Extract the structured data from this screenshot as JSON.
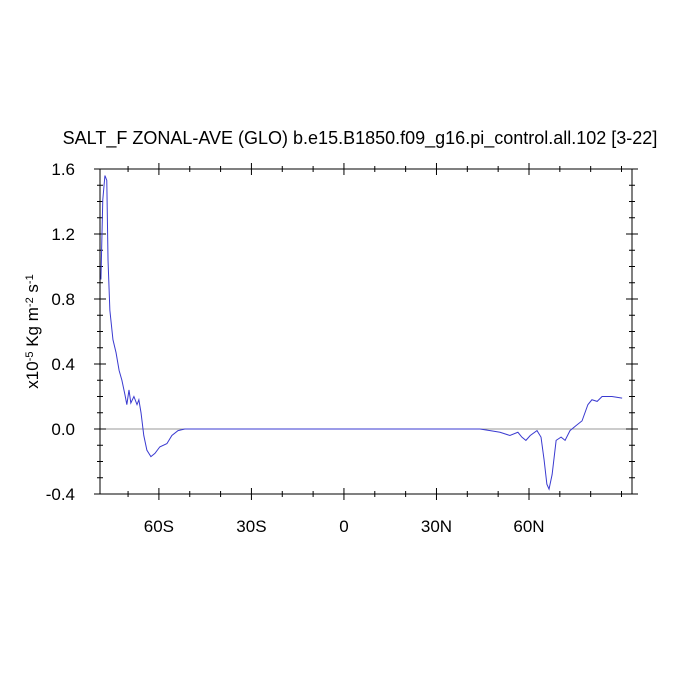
{
  "chart_data": {
    "type": "line",
    "title": "SALT_F ZONAL-AVE (GLO) b.e15.B1850.f09_g16.pi_control.all.102 [3-22]",
    "ylabel": [
      "x10",
      "-5",
      " Kg m",
      "-2",
      " s",
      "-1"
    ],
    "xlim": [
      -79.1,
      93.4
    ],
    "ylim": [
      -0.4,
      1.6
    ],
    "xticks": [
      {
        "value": -60,
        "label": "60S"
      },
      {
        "value": -30,
        "label": "30S"
      },
      0,
      {
        "value": 30,
        "label": "30N"
      },
      {
        "value": 60,
        "label": "60N"
      }
    ],
    "yticks": [
      1.6,
      1.2,
      0.8,
      0.4,
      {
        "value": 0,
        "label": "0.0"
      },
      -0.4
    ],
    "xminor": [
      -70,
      -50,
      -40,
      -20,
      -10,
      10,
      20,
      40,
      50,
      70,
      80,
      90
    ],
    "yminor": [
      -0.3,
      -0.2,
      -0.1,
      0.1,
      0.2,
      0.3,
      0.5,
      0.6,
      0.7,
      0.9,
      1.0,
      1.1,
      1.3,
      1.4,
      1.5
    ],
    "reference_line": 0,
    "reference_color": "#999999",
    "series": [
      {
        "color": "#3a3ad0",
        "x": [
          -78.8,
          -78.2,
          -77.5,
          -76.9,
          -76.5,
          -75.9,
          -74.9,
          -73.9,
          -72.9,
          -72.0,
          -71.0,
          -70.4,
          -69.7,
          -69.1,
          -68.1,
          -67.1,
          -66.5,
          -65.8,
          -64.9,
          -63.9,
          -62.6,
          -61.3,
          -59.7,
          -57.4,
          -55.8,
          -53.8,
          -51.6,
          44.1,
          47.4,
          50.6,
          53.8,
          56.4,
          57.7,
          59.0,
          60.4,
          62.6,
          63.9,
          64.9,
          65.8,
          66.5,
          67.5,
          68.8,
          70.4,
          71.7,
          73.3,
          75.2,
          77.2,
          79.1,
          80.4,
          82.1,
          83.7,
          86.9,
          90.2
        ],
        "values": [
          0.92,
          1.41,
          1.56,
          1.53,
          1.04,
          0.73,
          0.55,
          0.47,
          0.36,
          0.3,
          0.21,
          0.15,
          0.24,
          0.16,
          0.2,
          0.15,
          0.18,
          0.1,
          -0.04,
          -0.13,
          -0.17,
          -0.15,
          -0.11,
          -0.09,
          -0.04,
          -0.01,
          0,
          0,
          -0.01,
          -0.02,
          -0.04,
          -0.02,
          -0.05,
          -0.07,
          -0.04,
          -0.01,
          -0.05,
          -0.19,
          -0.34,
          -0.37,
          -0.28,
          -0.07,
          -0.05,
          -0.07,
          -0.01,
          0.02,
          0.05,
          0.15,
          0.18,
          0.17,
          0.2,
          0.2,
          0.19
        ]
      }
    ]
  }
}
